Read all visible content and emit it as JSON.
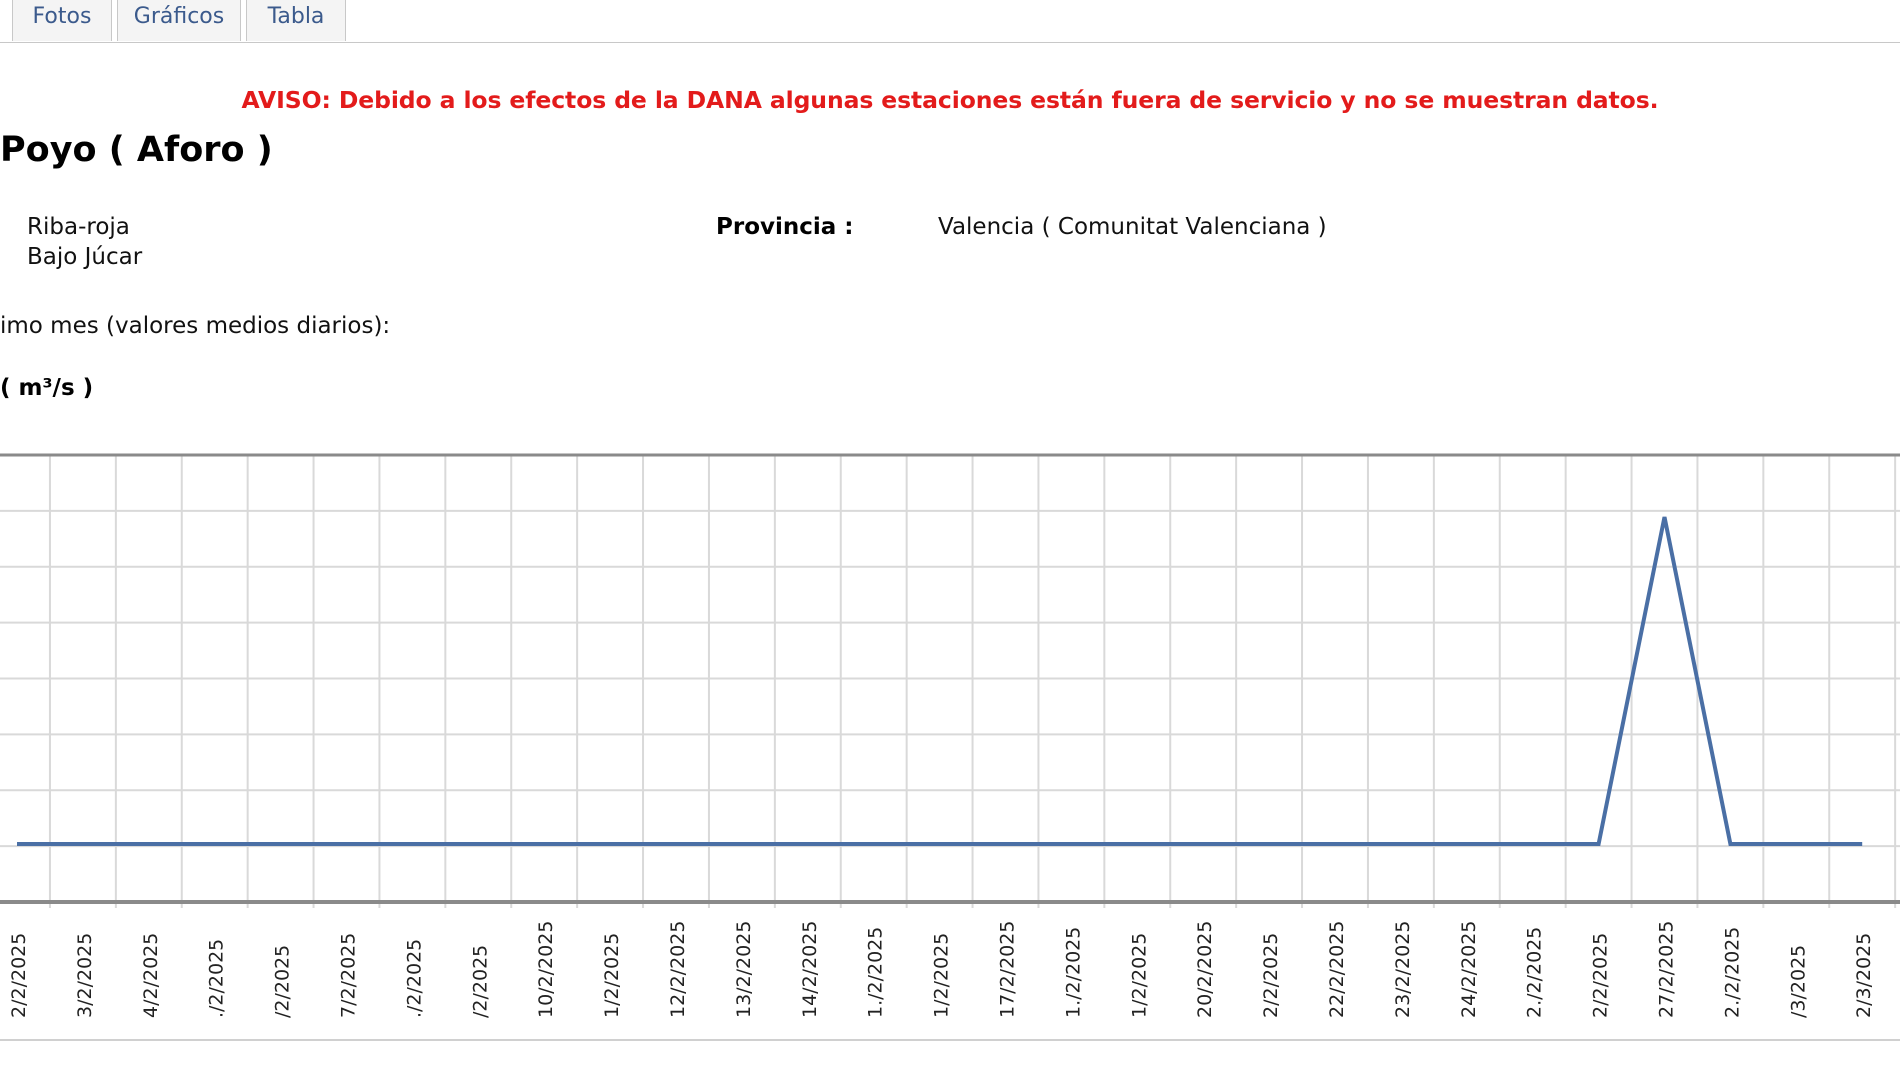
{
  "tabs": [
    {
      "label": "Fotos"
    },
    {
      "label": "Gráficos"
    },
    {
      "label": "Tabla"
    }
  ],
  "warning": "AVISO: Debido a los efectos de la DANA algunas estaciones están fuera de servicio y no se muestran datos.",
  "station": {
    "title": "Poyo ( Aforo )",
    "municipality": "Riba-roja",
    "basin": "Bajo Júcar",
    "province_label": "Provincia :",
    "province_value": "Valencia ( Comunitat Valenciana )"
  },
  "section_label": "imo mes (valores medios diarios):",
  "unit_label": "( m³/s )",
  "colors": {
    "warning": "#e31b1b",
    "line": "#4a6fa5",
    "grid": "#d9d9d9",
    "tab_text": "#3b5a8c"
  },
  "chart_data": {
    "type": "line",
    "x": [
      "2/2/2025",
      "3/2/2025",
      "4/2/2025",
      "./2/2025",
      "/2/2025",
      "7/2/2025",
      "./2/2025",
      "/2/2025",
      "10/2/2025",
      "1/2/2025",
      "12/2/2025",
      "13/2/2025",
      "14/2/2025",
      "1./2/2025",
      "1/2/2025",
      "17/2/2025",
      "1./2/2025",
      "1/2/2025",
      "20/2/2025",
      "2/2/2025",
      "22/2/2025",
      "23/2/2025",
      "24/2/2025",
      "2./2/2025",
      "2/2/2025",
      "27/2/2025",
      "2./2/2025",
      "/3/2025",
      "2/3/2025"
    ],
    "series": [
      {
        "values": [
          0,
          0,
          0,
          0,
          0,
          0,
          0,
          0,
          0,
          0,
          0,
          0,
          0,
          0,
          0,
          0,
          0,
          0,
          0,
          0,
          0,
          0,
          0,
          0,
          0,
          1,
          0,
          0,
          0
        ]
      }
    ],
    "grid": true
  }
}
